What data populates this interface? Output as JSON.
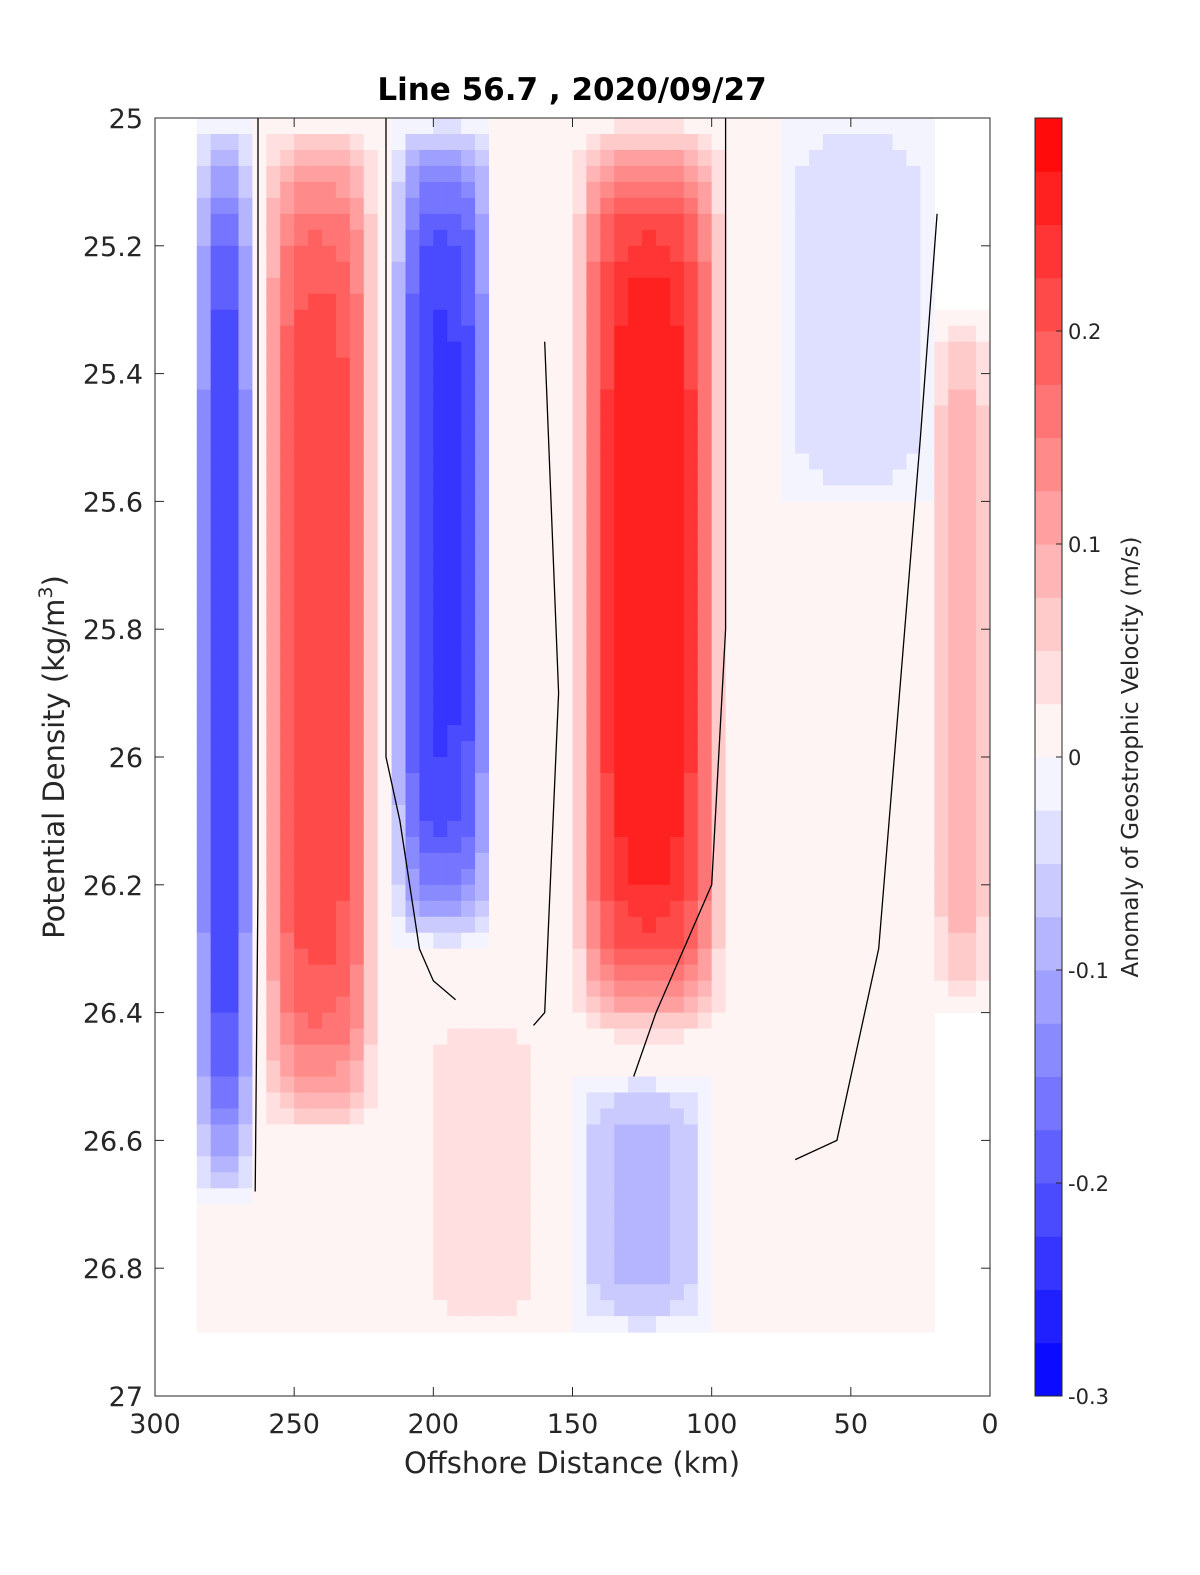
{
  "chart_data": {
    "type": "heatmap",
    "title": "Line 56.7 , 2020/09/27",
    "xlabel": "Offshore Distance (km)",
    "ylabel_main": "Potential Density (kg/m",
    "ylabel_sup": "3",
    "ylabel_close": ")",
    "colorbar_label": "Anomaly of Geostrophic Velocity (m/s)",
    "xlim": [
      300,
      0
    ],
    "ylim": [
      25,
      27
    ],
    "x_reversed": true,
    "y_reversed": true,
    "x_ticks": [
      "300",
      "250",
      "200",
      "150",
      "100",
      "50",
      "0"
    ],
    "y_ticks": [
      "25",
      "25.2",
      "25.4",
      "25.6",
      "25.8",
      "26",
      "26.2",
      "26.4",
      "26.6",
      "26.8",
      "27"
    ],
    "colorbar_range": [
      -0.3,
      0.3
    ],
    "colorbar_ticks": [
      "0.2",
      "0.1",
      "0",
      "-0.1",
      "-0.2",
      "-0.3"
    ],
    "colormap": [
      "#0000ff",
      "#ffffff",
      "#ff0000"
    ],
    "contour_level": 0,
    "data_extent_x": [
      285,
      20
    ],
    "data_extent_y": [
      25,
      26.9
    ],
    "features": [
      {
        "name": "western-negative-core",
        "x_range": [
          285,
          265
        ],
        "y_range": [
          25,
          26.7
        ],
        "peak": -0.22
      },
      {
        "name": "western-positive-jet",
        "x_range": [
          262,
          220
        ],
        "y_range": [
          25,
          26.6
        ],
        "peak": 0.22
      },
      {
        "name": "central-negative-core",
        "x_range": [
          215,
          178
        ],
        "y_range": [
          25,
          26.3
        ],
        "peak": -0.23
      },
      {
        "name": "eastern-positive-jet",
        "x_range": [
          150,
          95
        ],
        "y_range": [
          25,
          26.45
        ],
        "peak": 0.27
      },
      {
        "name": "offshore-weak-negative",
        "x_range": [
          75,
          20
        ],
        "y_range": [
          25,
          25.6
        ],
        "peak": -0.05
      },
      {
        "name": "nearshore-weak-positive",
        "x_range": [
          20,
          0
        ],
        "y_range": [
          25.3,
          26.4
        ],
        "peak": 0.1
      },
      {
        "name": "deep-weak-positive",
        "x_range": [
          205,
          160
        ],
        "y_range": [
          26.4,
          26.9
        ],
        "peak": 0.05
      },
      {
        "name": "deep-weak-negative",
        "x_range": [
          150,
          100
        ],
        "y_range": [
          26.5,
          26.9
        ],
        "peak": -0.08
      }
    ]
  }
}
